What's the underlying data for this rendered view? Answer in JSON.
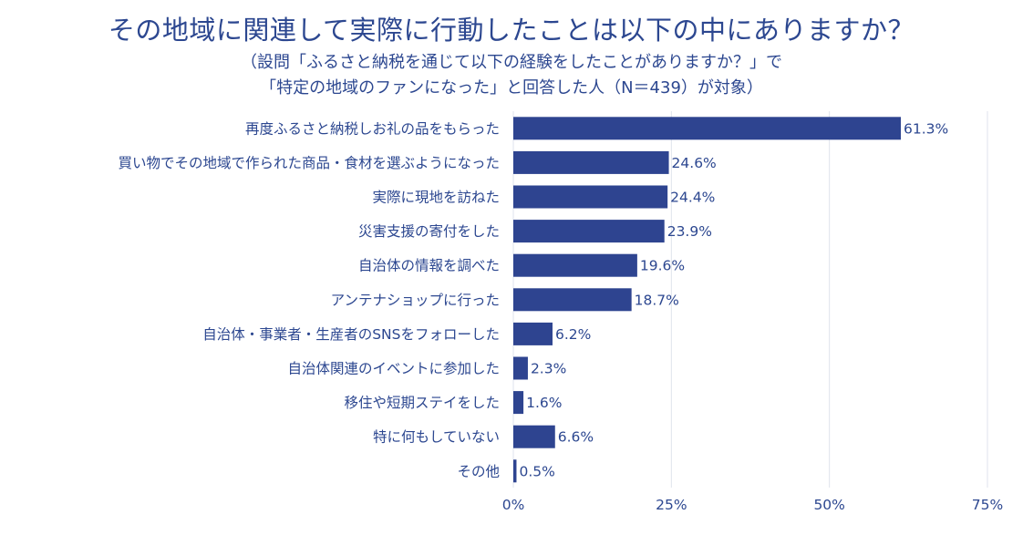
{
  "header": {
    "title": "その地域に関連して実際に行動したことは以下の中にありますか？",
    "subtitle_line1": "（設問「ふるさと納税を通じて以下の経験をしたことがありますか？」で",
    "subtitle_line2": "「特定の地域のファンになった」と回答した人（N＝439）が対象）"
  },
  "colors": {
    "bar": "#2e4490",
    "grid": "#dfe3ec",
    "text": "#2c4790"
  },
  "chart_data": {
    "type": "bar",
    "orientation": "horizontal",
    "categories": [
      "再度ふるさと納税しお礼の品をもらった",
      "買い物でその地域で作られた商品・食材を選ぶようになった",
      "実際に現地を訪ねた",
      "災害支援の寄付をした",
      "自治体の情報を調べた",
      "アンテナショップに行った",
      "自治体・事業者・生産者のSNSをフォローした",
      "自治体関連のイベントに参加した",
      "移住や短期ステイをした",
      "特に何もしていない",
      "その他"
    ],
    "values": [
      61.3,
      24.6,
      24.4,
      23.9,
      19.6,
      18.7,
      6.2,
      2.3,
      1.6,
      6.6,
      0.5
    ],
    "value_labels": [
      "61.3%",
      "24.6%",
      "24.4%",
      "23.9%",
      "19.6%",
      "18.7%",
      "6.2%",
      "2.3%",
      "1.6%",
      "6.6%",
      "0.5%"
    ],
    "xlim": [
      0,
      75
    ],
    "x_ticks": [
      0,
      25,
      50,
      75
    ],
    "x_tick_labels": [
      "0%",
      "25%",
      "50%",
      "75%"
    ],
    "grid": true,
    "legend": "none"
  }
}
